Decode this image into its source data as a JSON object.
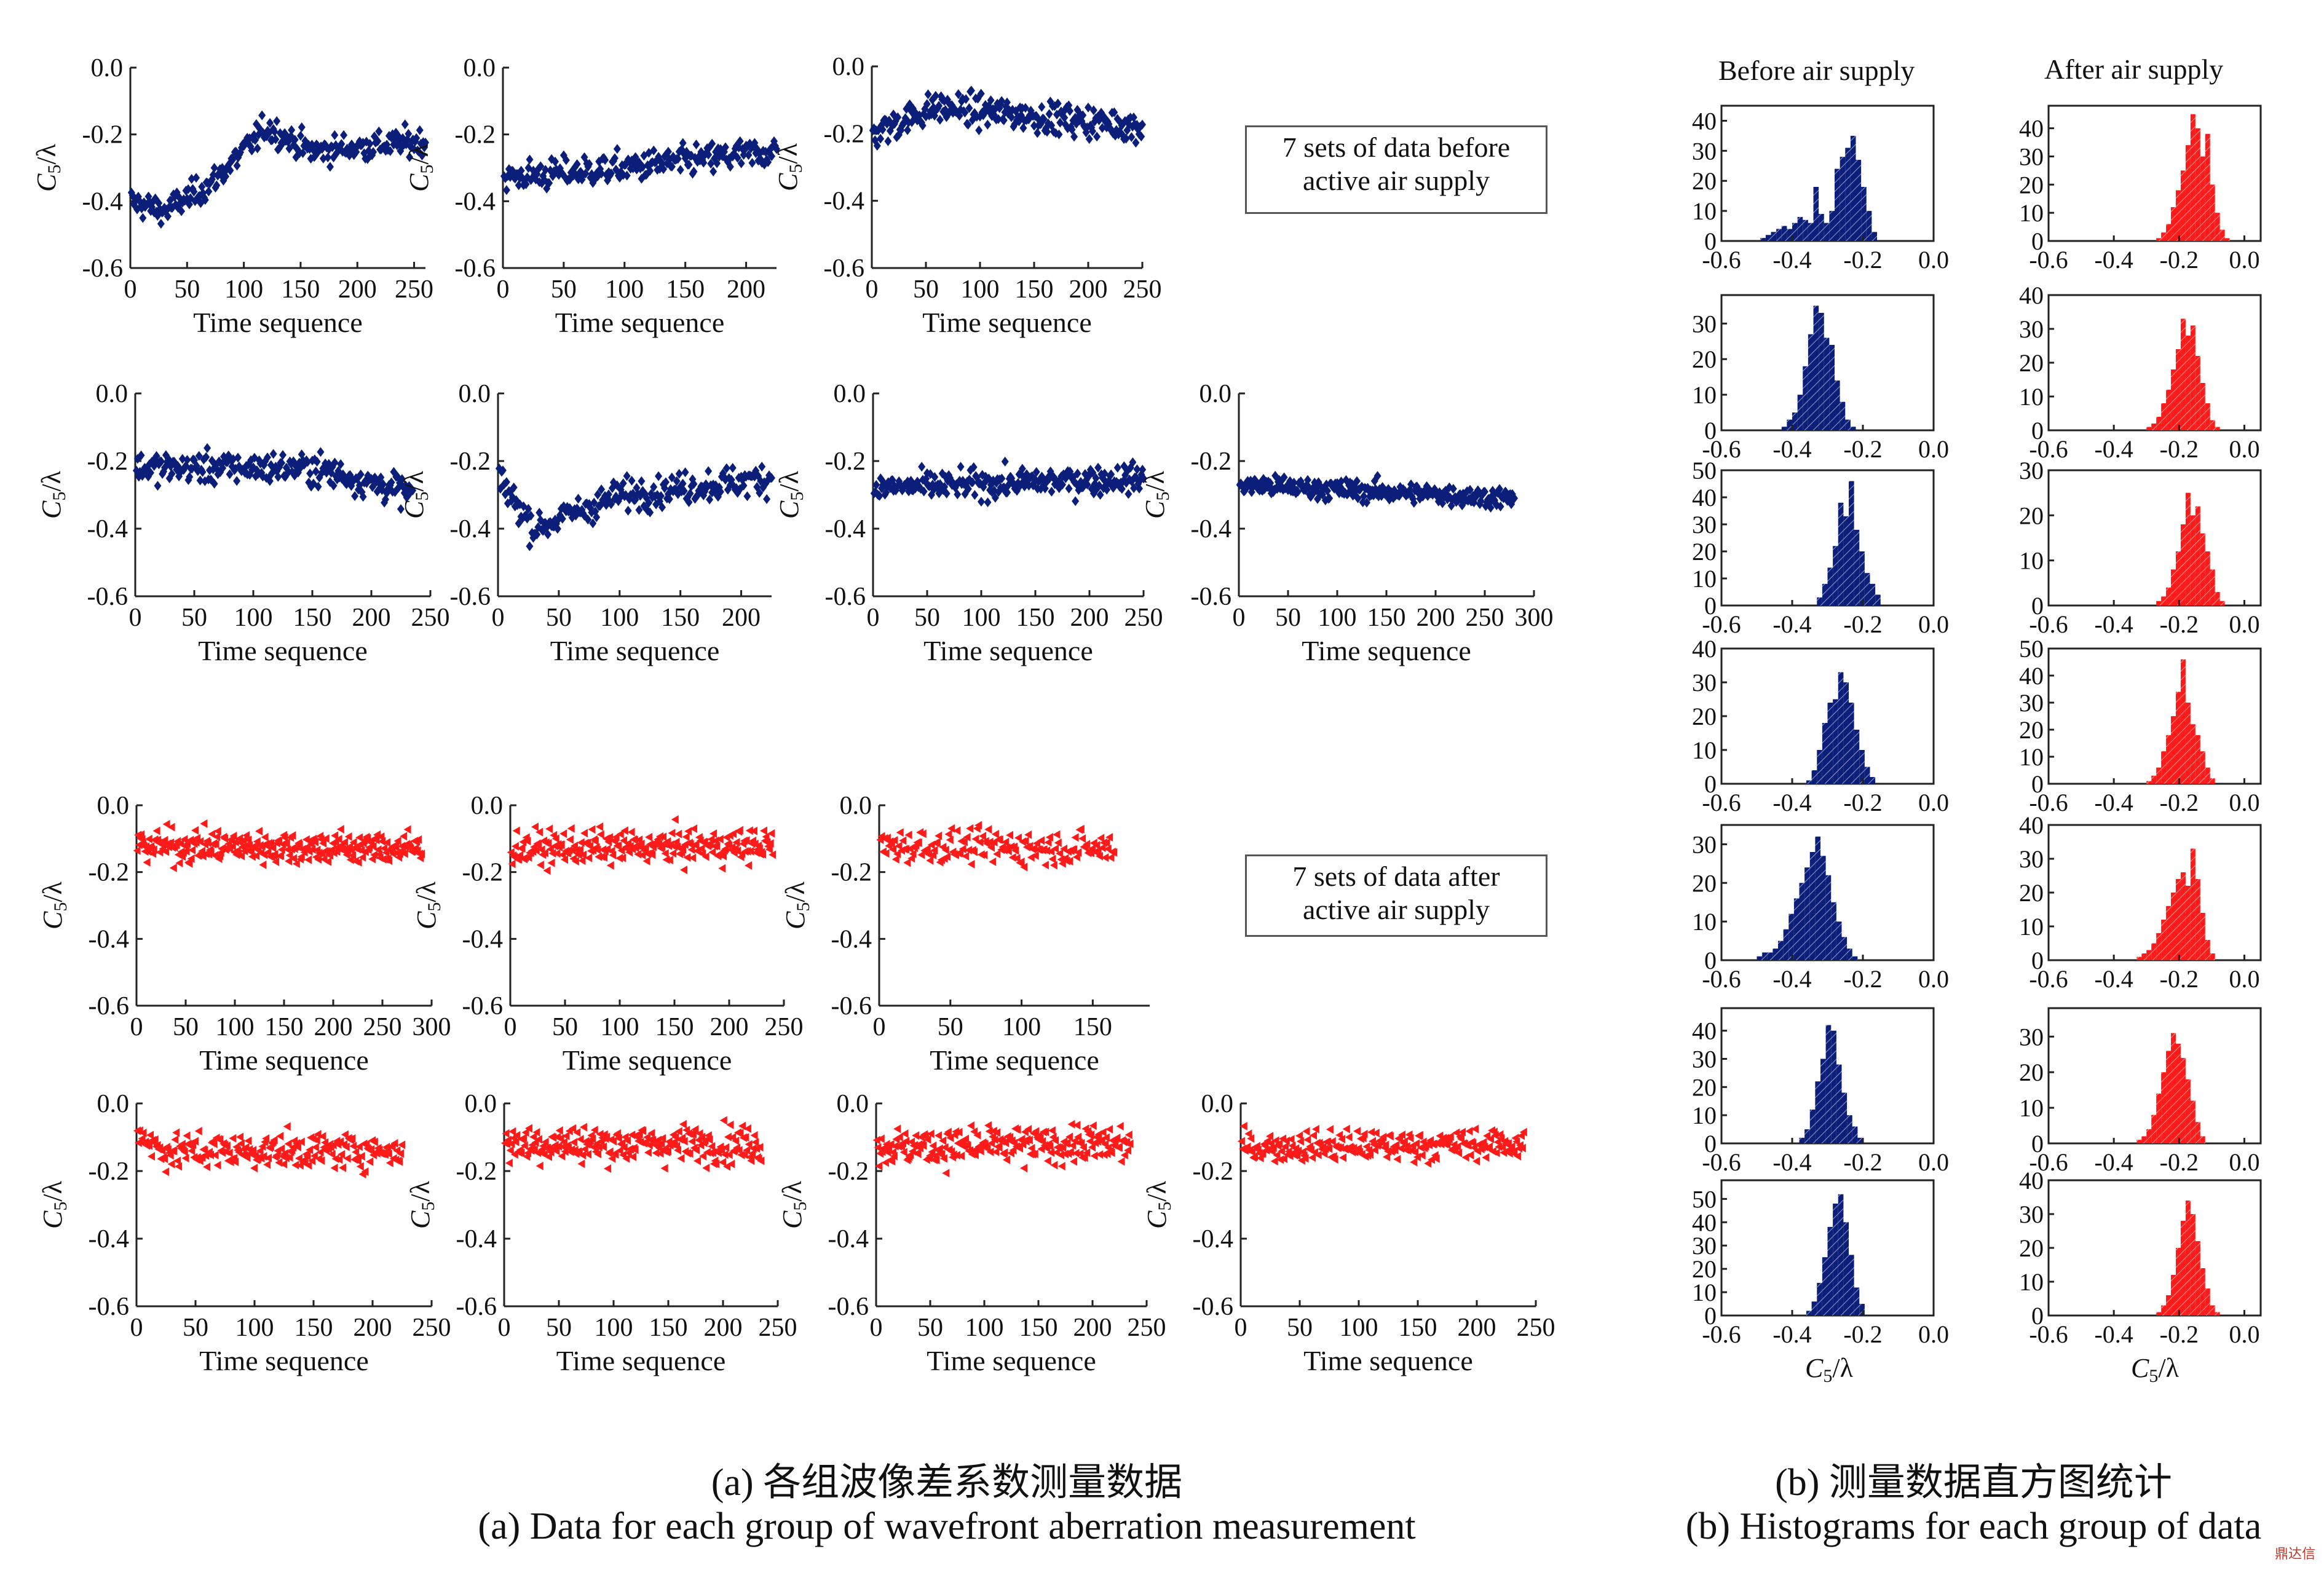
{
  "colors": {
    "before": "#0b1f7a",
    "after": "#ff1a1a",
    "axis": "#222222"
  },
  "legend": {
    "before": [
      "7 sets of data before",
      "active air supply"
    ],
    "after": [
      "7 sets of data after",
      "active air supply"
    ]
  },
  "histogram_headers": {
    "before": "Before air supply",
    "after": "After air supply"
  },
  "captions": {
    "a_cn": "(a) 各组波像差系数测量数据",
    "a_en": "(a) Data for each group of wavefront aberration measurement",
    "b_cn": "(b) 测量数据直方图统计",
    "b_en": "(b) Histograms for each group of data"
  },
  "watermark": "鼎达信",
  "chart_data": [
    {
      "id": "scatter-before-1",
      "type": "scatter",
      "xlabel": "Time sequence",
      "ylabel": "C5/λ",
      "xlim": [
        0,
        260
      ],
      "ylim": [
        -0.6,
        0.0
      ],
      "xticks": [
        0,
        50,
        100,
        150,
        200,
        250
      ],
      "yticks": [
        0.0,
        -0.2,
        -0.4,
        -0.6
      ],
      "n": 260,
      "series": [
        {
          "marker": "diamond",
          "color": "before",
          "trend": [
            [
              0,
              -0.4
            ],
            [
              30,
              -0.43
            ],
            [
              70,
              -0.35
            ],
            [
              120,
              -0.18
            ],
            [
              160,
              -0.25
            ],
            [
              260,
              -0.22
            ]
          ],
          "spread": 0.04
        }
      ]
    },
    {
      "id": "scatter-before-2",
      "type": "scatter",
      "xlabel": "Time sequence",
      "ylabel": "C5/λ",
      "xlim": [
        0,
        225
      ],
      "ylim": [
        -0.6,
        0.0
      ],
      "xticks": [
        0,
        50,
        100,
        150,
        200
      ],
      "yticks": [
        0.0,
        -0.2,
        -0.4,
        -0.6
      ],
      "n": 225,
      "series": [
        {
          "marker": "diamond",
          "color": "before",
          "trend": [
            [
              0,
              -0.33
            ],
            [
              100,
              -0.3
            ],
            [
              225,
              -0.25
            ]
          ],
          "spread": 0.045
        }
      ]
    },
    {
      "id": "scatter-before-3",
      "type": "scatter",
      "xlabel": "Time sequence",
      "ylabel": "C5/λ",
      "xlim": [
        0,
        250
      ],
      "ylim": [
        -0.6,
        0.0
      ],
      "xticks": [
        0,
        50,
        100,
        150,
        200,
        250
      ],
      "yticks": [
        0.0,
        -0.2,
        -0.4,
        -0.6
      ],
      "n": 250,
      "series": [
        {
          "marker": "diamond",
          "color": "before",
          "trend": [
            [
              0,
              -0.2
            ],
            [
              60,
              -0.12
            ],
            [
              250,
              -0.18
            ]
          ],
          "spread": 0.045
        }
      ]
    },
    {
      "id": "scatter-before-4",
      "type": "scatter",
      "xlabel": "Time sequence",
      "ylabel": "C5/λ",
      "xlim": [
        0,
        250
      ],
      "ylim": [
        -0.6,
        0.0
      ],
      "xticks": [
        0,
        50,
        100,
        150,
        200,
        250
      ],
      "yticks": [
        0.0,
        -0.2,
        -0.4,
        -0.6
      ],
      "n": 235,
      "series": [
        {
          "marker": "diamond",
          "color": "before",
          "trend": [
            [
              0,
              -0.22
            ],
            [
              150,
              -0.22
            ],
            [
              240,
              -0.3
            ]
          ],
          "spread": 0.045
        }
      ]
    },
    {
      "id": "scatter-before-5",
      "type": "scatter",
      "xlabel": "Time sequence",
      "ylabel": "C5/λ",
      "xlim": [
        0,
        225
      ],
      "ylim": [
        -0.6,
        0.0
      ],
      "xticks": [
        0,
        50,
        100,
        150,
        200
      ],
      "yticks": [
        0.0,
        -0.2,
        -0.4,
        -0.6
      ],
      "n": 225,
      "series": [
        {
          "marker": "diamond",
          "color": "before",
          "trend": [
            [
              0,
              -0.25
            ],
            [
              30,
              -0.4
            ],
            [
              100,
              -0.3
            ],
            [
              225,
              -0.25
            ]
          ],
          "spread": 0.045
        }
      ]
    },
    {
      "id": "scatter-before-6",
      "type": "scatter",
      "xlabel": "Time sequence",
      "ylabel": "C5/λ",
      "xlim": [
        0,
        250
      ],
      "ylim": [
        -0.6,
        0.0
      ],
      "xticks": [
        0,
        50,
        100,
        150,
        200,
        250
      ],
      "yticks": [
        0.0,
        -0.2,
        -0.4,
        -0.6
      ],
      "n": 250,
      "series": [
        {
          "marker": "diamond",
          "color": "before",
          "trend": [
            [
              0,
              -0.28
            ],
            [
              250,
              -0.25
            ]
          ],
          "spread": 0.04
        }
      ]
    },
    {
      "id": "scatter-before-7",
      "type": "scatter",
      "xlabel": "Time sequence",
      "ylabel": "C5/λ",
      "xlim": [
        0,
        300
      ],
      "ylim": [
        -0.6,
        0.0
      ],
      "xticks": [
        0,
        50,
        100,
        150,
        200,
        250,
        300
      ],
      "yticks": [
        0.0,
        -0.2,
        -0.4,
        -0.6
      ],
      "n": 280,
      "series": [
        {
          "marker": "diamond",
          "color": "before",
          "trend": [
            [
              0,
              -0.27
            ],
            [
              280,
              -0.31
            ]
          ],
          "spread": 0.03
        }
      ]
    },
    {
      "id": "scatter-after-1",
      "type": "scatter",
      "xlabel": "Time sequence",
      "ylabel": "C5/λ",
      "xlim": [
        0,
        300
      ],
      "ylim": [
        -0.6,
        0.0
      ],
      "xticks": [
        0,
        50,
        100,
        150,
        200,
        250,
        300
      ],
      "yticks": [
        0.0,
        -0.2,
        -0.4,
        -0.6
      ],
      "n": 290,
      "series": [
        {
          "marker": "triangle",
          "color": "after",
          "trend": [
            [
              0,
              -0.12
            ],
            [
              290,
              -0.13
            ]
          ],
          "spread": 0.05
        }
      ]
    },
    {
      "id": "scatter-after-2",
      "type": "scatter",
      "xlabel": "Time sequence",
      "ylabel": "C5/λ",
      "xlim": [
        0,
        250
      ],
      "ylim": [
        -0.6,
        0.0
      ],
      "xticks": [
        0,
        50,
        100,
        150,
        200,
        250
      ],
      "yticks": [
        0.0,
        -0.2,
        -0.4,
        -0.6
      ],
      "n": 240,
      "series": [
        {
          "marker": "triangle",
          "color": "after",
          "trend": [
            [
              0,
              -0.13
            ],
            [
              240,
              -0.12
            ]
          ],
          "spread": 0.05
        }
      ]
    },
    {
      "id": "scatter-after-3",
      "type": "scatter",
      "xlabel": "Time sequence",
      "ylabel": "C5/λ",
      "xlim": [
        0,
        190
      ],
      "ylim": [
        -0.6,
        0.0
      ],
      "xticks": [
        0,
        50,
        100,
        150
      ],
      "yticks": [
        0.0,
        -0.2,
        -0.4,
        -0.6
      ],
      "n": 165,
      "series": [
        {
          "marker": "triangle",
          "color": "after",
          "trend": [
            [
              0,
              -0.12
            ],
            [
              165,
              -0.13
            ]
          ],
          "spread": 0.05
        }
      ]
    },
    {
      "id": "scatter-after-4",
      "type": "scatter",
      "xlabel": "Time sequence",
      "ylabel": "C5/λ",
      "xlim": [
        0,
        250
      ],
      "ylim": [
        -0.6,
        0.0
      ],
      "xticks": [
        0,
        50,
        100,
        150,
        200,
        250
      ],
      "yticks": [
        0.0,
        -0.2,
        -0.4,
        -0.6
      ],
      "n": 225,
      "series": [
        {
          "marker": "triangle",
          "color": "after",
          "trend": [
            [
              0,
              -0.08
            ],
            [
              20,
              -0.14
            ],
            [
              225,
              -0.14
            ]
          ],
          "spread": 0.05
        }
      ]
    },
    {
      "id": "scatter-after-5",
      "type": "scatter",
      "xlabel": "Time sequence",
      "ylabel": "C5/λ",
      "xlim": [
        0,
        250
      ],
      "ylim": [
        -0.6,
        0.0
      ],
      "xticks": [
        0,
        50,
        100,
        150,
        200,
        250
      ],
      "yticks": [
        0.0,
        -0.2,
        -0.4,
        -0.6
      ],
      "n": 235,
      "series": [
        {
          "marker": "triangle",
          "color": "after",
          "trend": [
            [
              0,
              -0.12
            ],
            [
              235,
              -0.12
            ]
          ],
          "spread": 0.055
        }
      ]
    },
    {
      "id": "scatter-after-6",
      "type": "scatter",
      "xlabel": "Time sequence",
      "ylabel": "C5/λ",
      "xlim": [
        0,
        250
      ],
      "ylim": [
        -0.6,
        0.0
      ],
      "xticks": [
        0,
        50,
        100,
        150,
        200,
        250
      ],
      "yticks": [
        0.0,
        -0.2,
        -0.4,
        -0.6
      ],
      "n": 235,
      "series": [
        {
          "marker": "triangle",
          "color": "after",
          "trend": [
            [
              0,
              -0.13
            ],
            [
              235,
              -0.12
            ]
          ],
          "spread": 0.055
        }
      ]
    },
    {
      "id": "scatter-after-7",
      "type": "scatter",
      "xlabel": "Time sequence",
      "ylabel": "C5/λ",
      "xlim": [
        0,
        250
      ],
      "ylim": [
        -0.6,
        0.0
      ],
      "xticks": [
        0,
        50,
        100,
        150,
        200,
        250
      ],
      "yticks": [
        0.0,
        -0.2,
        -0.4,
        -0.6
      ],
      "n": 240,
      "series": [
        {
          "marker": "triangle",
          "color": "after",
          "trend": [
            [
              0,
              -0.13
            ],
            [
              240,
              -0.12
            ]
          ],
          "spread": 0.045
        }
      ]
    },
    {
      "id": "hist-before-1",
      "type": "bar",
      "xlim": [
        -0.6,
        0.0
      ],
      "ylim": [
        0,
        45
      ],
      "yticks": [
        0,
        10,
        20,
        30,
        40
      ],
      "xticks": [
        -0.6,
        -0.4,
        -0.2,
        0.0
      ],
      "bin_width": 0.015,
      "bins_start": -0.49,
      "values": [
        1,
        2,
        3,
        4,
        5,
        4,
        6,
        8,
        7,
        6,
        18,
        9,
        6,
        10,
        24,
        28,
        31,
        35,
        27,
        18,
        10,
        3
      ],
      "color": "before"
    },
    {
      "id": "hist-before-2",
      "type": "bar",
      "xlim": [
        -0.6,
        0.0
      ],
      "ylim": [
        0,
        38
      ],
      "yticks": [
        0,
        10,
        20,
        30
      ],
      "xticks": [
        -0.6,
        -0.4,
        -0.2,
        0.0
      ],
      "bin_width": 0.015,
      "bins_start": -0.43,
      "values": [
        1,
        3,
        5,
        10,
        18,
        27,
        35,
        33,
        26,
        24,
        14,
        8,
        3,
        1
      ],
      "color": "before"
    },
    {
      "id": "hist-before-3",
      "type": "bar",
      "xlim": [
        -0.6,
        0.0
      ],
      "ylim": [
        0,
        50
      ],
      "yticks": [
        0,
        10,
        20,
        30,
        40,
        50
      ],
      "xticks": [
        -0.6,
        -0.4,
        -0.2,
        0.0
      ],
      "bin_width": 0.015,
      "bins_start": -0.33,
      "values": [
        3,
        8,
        14,
        22,
        38,
        33,
        46,
        28,
        20,
        12,
        8,
        4
      ],
      "color": "before"
    },
    {
      "id": "hist-before-4",
      "type": "bar",
      "xlim": [
        -0.6,
        0.0
      ],
      "ylim": [
        0,
        40
      ],
      "yticks": [
        0,
        10,
        20,
        30,
        40
      ],
      "xticks": [
        -0.6,
        -0.4,
        -0.2,
        0.0
      ],
      "bin_width": 0.015,
      "bins_start": -0.36,
      "values": [
        1,
        4,
        10,
        18,
        24,
        25,
        33,
        30,
        24,
        16,
        10,
        5,
        2
      ],
      "color": "before"
    },
    {
      "id": "hist-before-5",
      "type": "bar",
      "xlim": [
        -0.6,
        0.0
      ],
      "ylim": [
        0,
        35
      ],
      "yticks": [
        0,
        10,
        20,
        30
      ],
      "xticks": [
        -0.6,
        -0.4,
        -0.2,
        0.0
      ],
      "bin_width": 0.015,
      "bins_start": -0.5,
      "values": [
        1,
        2,
        2,
        3,
        5,
        8,
        12,
        16,
        20,
        24,
        28,
        32,
        27,
        22,
        15,
        10,
        6,
        3,
        1
      ],
      "color": "before"
    },
    {
      "id": "hist-before-6",
      "type": "bar",
      "xlim": [
        -0.6,
        0.0
      ],
      "ylim": [
        0,
        48
      ],
      "yticks": [
        0,
        10,
        20,
        30,
        40
      ],
      "xticks": [
        -0.6,
        -0.4,
        -0.2,
        0.0
      ],
      "bin_width": 0.015,
      "bins_start": -0.38,
      "values": [
        2,
        5,
        12,
        22,
        30,
        42,
        40,
        28,
        18,
        10,
        6,
        2
      ],
      "color": "before"
    },
    {
      "id": "hist-before-7",
      "type": "bar",
      "xlim": [
        -0.6,
        0.0
      ],
      "ylim": [
        0,
        58
      ],
      "yticks": [
        0,
        10,
        20,
        30,
        40,
        50
      ],
      "xticks": [
        -0.6,
        -0.4,
        -0.2,
        0.0
      ],
      "bin_width": 0.015,
      "bins_start": -0.36,
      "values": [
        2,
        6,
        14,
        25,
        38,
        48,
        52,
        40,
        26,
        12,
        5
      ],
      "color": "before"
    },
    {
      "id": "hist-after-1",
      "type": "bar",
      "xlim": [
        -0.6,
        0.05
      ],
      "ylim": [
        0,
        48
      ],
      "yticks": [
        0,
        10,
        20,
        30,
        40
      ],
      "xticks": [
        -0.6,
        -0.4,
        -0.2,
        0.0
      ],
      "bin_width": 0.015,
      "bins_start": -0.27,
      "values": [
        1,
        3,
        6,
        12,
        18,
        25,
        34,
        45,
        40,
        30,
        38,
        20,
        10,
        4,
        1
      ],
      "color": "after"
    },
    {
      "id": "hist-after-2",
      "type": "bar",
      "xlim": [
        -0.6,
        0.05
      ],
      "ylim": [
        0,
        40
      ],
      "yticks": [
        0,
        10,
        20,
        30,
        40
      ],
      "xticks": [
        -0.6,
        -0.4,
        -0.2,
        0.0
      ],
      "bin_width": 0.015,
      "bins_start": -0.3,
      "values": [
        1,
        2,
        4,
        8,
        12,
        18,
        24,
        33,
        28,
        31,
        22,
        14,
        8,
        3,
        1
      ],
      "color": "after"
    },
    {
      "id": "hist-after-3",
      "type": "bar",
      "xlim": [
        -0.6,
        0.05
      ],
      "ylim": [
        0,
        30
      ],
      "yticks": [
        0,
        10,
        20,
        30
      ],
      "xticks": [
        -0.6,
        -0.4,
        -0.2,
        0.0
      ],
      "bin_width": 0.015,
      "bins_start": -0.27,
      "values": [
        1,
        2,
        4,
        8,
        12,
        18,
        25,
        20,
        22,
        16,
        12,
        8,
        3,
        1
      ],
      "color": "after"
    },
    {
      "id": "hist-after-4",
      "type": "bar",
      "xlim": [
        -0.6,
        0.05
      ],
      "ylim": [
        0,
        50
      ],
      "yticks": [
        0,
        10,
        20,
        30,
        40,
        50
      ],
      "xticks": [
        -0.6,
        -0.4,
        -0.2,
        0.0
      ],
      "bin_width": 0.015,
      "bins_start": -0.3,
      "values": [
        1,
        3,
        6,
        12,
        18,
        25,
        34,
        46,
        30,
        22,
        18,
        12,
        6,
        2
      ],
      "color": "after"
    },
    {
      "id": "hist-after-5",
      "type": "bar",
      "xlim": [
        -0.6,
        0.05
      ],
      "ylim": [
        0,
        40
      ],
      "yticks": [
        0,
        10,
        20,
        30,
        40
      ],
      "xticks": [
        -0.6,
        -0.4,
        -0.2,
        0.0
      ],
      "bin_width": 0.015,
      "bins_start": -0.33,
      "values": [
        1,
        2,
        3,
        5,
        8,
        12,
        16,
        20,
        24,
        26,
        22,
        33,
        24,
        14,
        6,
        2
      ],
      "color": "after"
    },
    {
      "id": "hist-after-6",
      "type": "bar",
      "xlim": [
        -0.6,
        0.05
      ],
      "ylim": [
        0,
        38
      ],
      "yticks": [
        0,
        10,
        20,
        30
      ],
      "xticks": [
        -0.6,
        -0.4,
        -0.2,
        0.0
      ],
      "bin_width": 0.015,
      "bins_start": -0.33,
      "values": [
        1,
        2,
        4,
        8,
        14,
        20,
        26,
        31,
        28,
        24,
        18,
        12,
        6,
        2
      ],
      "color": "after"
    },
    {
      "id": "hist-after-7",
      "type": "bar",
      "xlim": [
        -0.6,
        0.05
      ],
      "ylim": [
        0,
        40
      ],
      "yticks": [
        0,
        10,
        20,
        30,
        40
      ],
      "xticks": [
        -0.6,
        -0.4,
        -0.2,
        0.0
      ],
      "bin_width": 0.015,
      "bins_start": -0.27,
      "values": [
        1,
        3,
        6,
        12,
        20,
        28,
        34,
        30,
        22,
        14,
        8,
        3,
        1
      ],
      "color": "after"
    }
  ]
}
